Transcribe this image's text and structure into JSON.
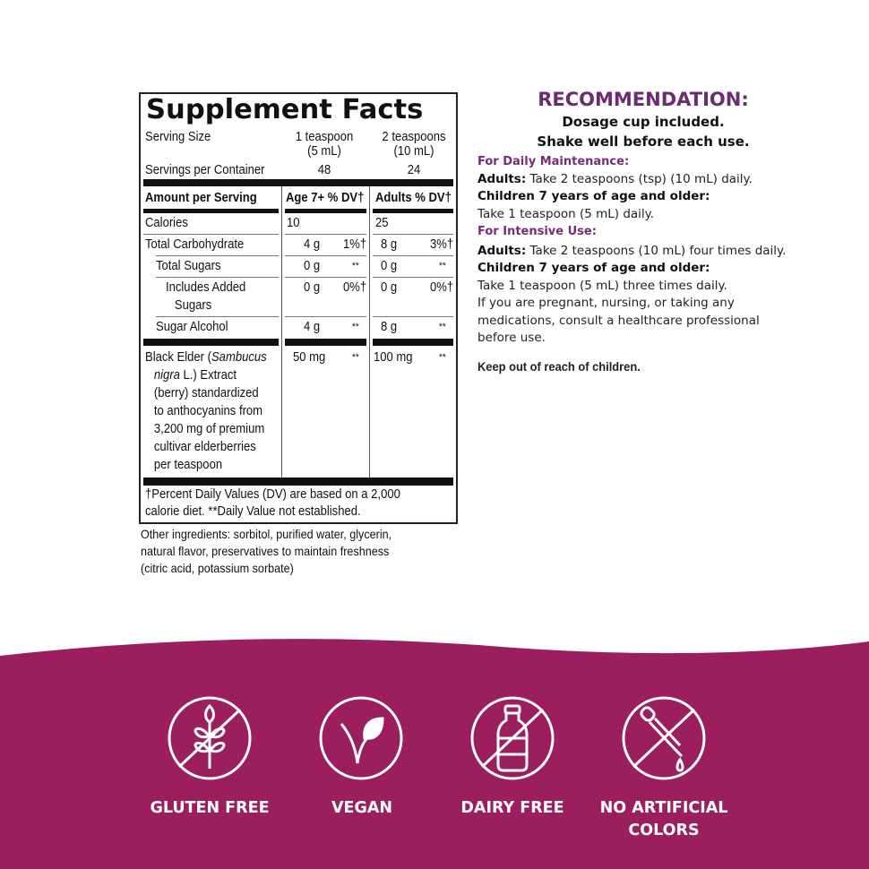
{
  "facts": {
    "title": "Supplement Facts",
    "serving_size_label": "Serving Size",
    "serving_child": [
      "1 teaspoon",
      "(5 mL)"
    ],
    "serving_adult": [
      "2 teaspoons",
      "(10 mL)"
    ],
    "servings_label": "Servings per Container",
    "servings_child": "48",
    "servings_adult": "24",
    "header": [
      "Amount per Serving",
      "Age 7+ % DV†",
      "Adults % DV†"
    ],
    "rows": [
      {
        "name": "Calories",
        "c_amt": "10",
        "c_dv": "",
        "a_amt": "25",
        "a_dv": ""
      },
      {
        "name": "Total Carbohydrate",
        "c_amt": "4 g",
        "c_dv": "1%†",
        "a_amt": "8 g",
        "a_dv": "3%†"
      },
      {
        "name": "Total Sugars",
        "c_amt": "0 g",
        "c_dv": "**",
        "a_amt": "0 g",
        "a_dv": "**"
      },
      {
        "name": "Includes Added",
        "name2": "Sugars",
        "c_amt": "0 g",
        "c_dv": "0%†",
        "a_amt": "0 g",
        "a_dv": "0%†"
      },
      {
        "name": "Sugar Alcohol",
        "c_amt": "4 g",
        "c_dv": "**",
        "a_amt": "8 g",
        "a_dv": "**"
      }
    ],
    "elder": {
      "lines": [
        "Black Elder (",
        "Sambucus",
        "nigra",
        " L.) Extract",
        "(berry) standardized",
        "to anthocyanins from",
        "3,200 mg of premium",
        "cultivar elderberries",
        "per teaspoon"
      ],
      "c_amt": "50 mg",
      "c_dv": "**",
      "a_amt": "100 mg",
      "a_dv": "**"
    },
    "footnote": [
      "†Percent Daily Values (DV) are based on a 2,000",
      "calorie diet. **Daily Value not established."
    ]
  },
  "other_ingredients": [
    "Other ingredients: sorbitol, purified water, glycerin,",
    "natural flavor, preservatives to maintain freshness",
    "(citric acid, potassium sorbate)"
  ],
  "recommendation": {
    "title": "RECOMMENDATION:",
    "sub1": "Dosage cup included.",
    "sub2": "Shake well before each use.",
    "daily_head": "For Daily Maintenance:",
    "adults_label": "Adults:",
    "daily_adults": " Take 2 teaspoons (tsp) (10 mL) daily.",
    "children_label": "Children 7 years of age and older:",
    "daily_children": "Take 1 teaspoon (5 mL) daily.",
    "intensive_head": "For Intensive Use:",
    "intensive_adults": " Take 2 teaspoons (10 mL) four times daily.",
    "intensive_children": "Take 1 teaspoon (5 mL) three times daily.",
    "warning": "If you are pregnant, nursing, or taking any medications, consult a healthcare professional before use.",
    "keep_out": "Keep out of reach of children."
  },
  "badges": [
    {
      "icon": "no-wheat-icon",
      "label": "GLUTEN FREE"
    },
    {
      "icon": "vegan-leaf-icon",
      "label": "VEGAN"
    },
    {
      "icon": "no-milk-bottle-icon",
      "label": "DAIRY FREE"
    },
    {
      "icon": "no-dropper-icon",
      "label": "NO ARTIFICIAL",
      "label2": "COLORS"
    }
  ],
  "colors": {
    "banner": "#9b1f5e",
    "accent": "#6c2a72"
  }
}
